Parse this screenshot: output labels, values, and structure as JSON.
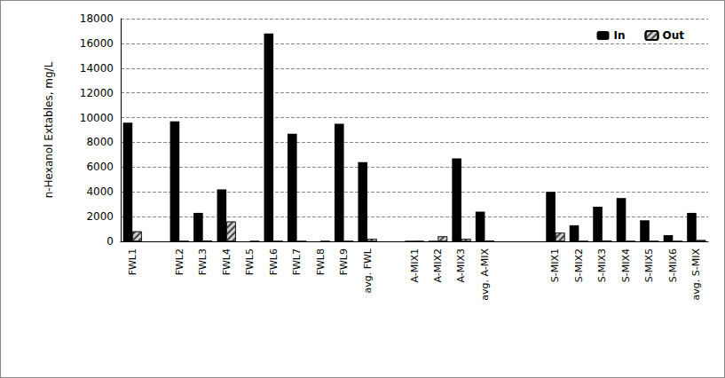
{
  "chart_data": {
    "type": "bar",
    "y_label": "n-Hexanol Extables, mg/L",
    "categories": [
      "FWL1",
      null,
      "FWL2",
      "FWL3",
      "FWL4",
      "FWL5",
      "FWL6",
      "FWL7",
      "FWL8",
      "FWL9",
      "avg. FWL",
      null,
      "A-MIX1",
      "A-MIX2",
      "A-MIX3",
      "avg. A-MIX",
      null,
      null,
      "S-MIX1",
      "S-MIX2",
      "S-MIX3",
      "S-MIX4",
      "S-MIX5",
      "S-MIX6",
      "avg. S-MIX"
    ],
    "series": [
      {
        "name": "In",
        "color": "#000000",
        "values": [
          9600,
          null,
          9700,
          2300,
          4200,
          0,
          16800,
          8700,
          0,
          9500,
          6400,
          null,
          50,
          50,
          6700,
          2400,
          null,
          null,
          4000,
          1300,
          2800,
          3500,
          1700,
          500,
          2300
        ]
      },
      {
        "name": "Out",
        "color": "#d0d0d0",
        "values": [
          800,
          null,
          0,
          50,
          1600,
          0,
          0,
          0,
          0,
          0,
          200,
          null,
          0,
          400,
          200,
          50,
          null,
          null,
          700,
          0,
          50,
          0,
          0,
          0,
          100
        ]
      }
    ],
    "ylim": [
      0,
      18000
    ],
    "yticks": [
      0,
      2000,
      4000,
      6000,
      8000,
      10000,
      12000,
      14000,
      16000,
      18000
    ],
    "grid": true,
    "legend": "upper right"
  }
}
